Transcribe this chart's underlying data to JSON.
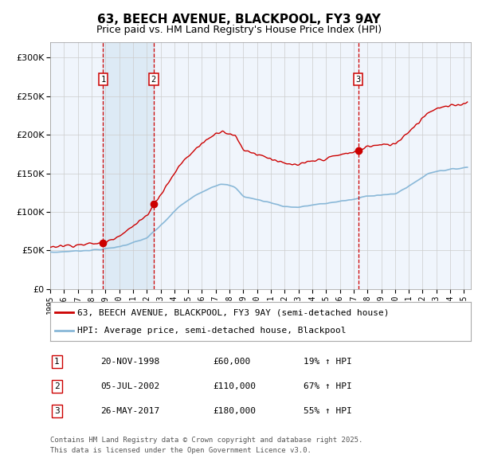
{
  "title": "63, BEECH AVENUE, BLACKPOOL, FY3 9AY",
  "subtitle": "Price paid vs. HM Land Registry's House Price Index (HPI)",
  "legend_property": "63, BEECH AVENUE, BLACKPOOL, FY3 9AY (semi-detached house)",
  "legend_hpi": "HPI: Average price, semi-detached house, Blackpool",
  "sale1_date": "20-NOV-1998",
  "sale1_price": 60000,
  "sale2_date": "05-JUL-2002",
  "sale2_price": 110000,
  "sale3_date": "26-MAY-2017",
  "sale3_price": 180000,
  "footnote_line1": "Contains HM Land Registry data © Crown copyright and database right 2025.",
  "footnote_line2": "This data is licensed under the Open Government Licence v3.0.",
  "property_color": "#cc0000",
  "hpi_color": "#89b8d8",
  "shade_color": "#ddeaf5",
  "vline_color": "#cc0000",
  "grid_color": "#cccccc",
  "bg_color": "#f0f5fc",
  "ylim_max": 320000,
  "ylim_min": 0,
  "table": [
    [
      "1",
      "20-NOV-1998",
      "£60,000",
      "19% ↑ HPI"
    ],
    [
      "2",
      "05-JUL-2002",
      "£110,000",
      "67% ↑ HPI"
    ],
    [
      "3",
      "26-MAY-2017",
      "£180,000",
      "55% ↑ HPI"
    ]
  ]
}
